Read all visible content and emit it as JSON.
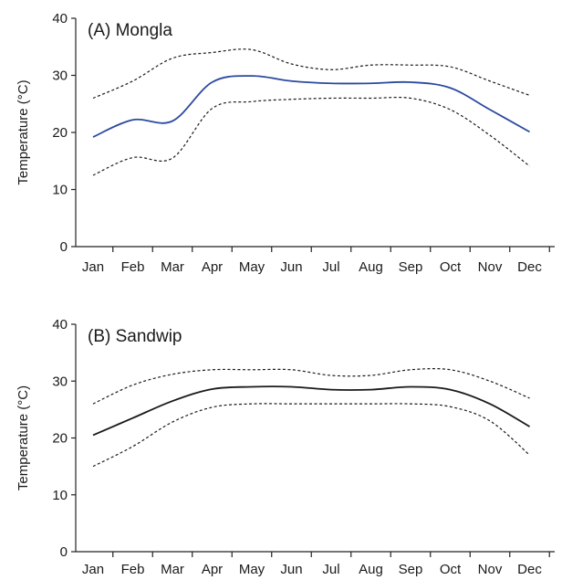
{
  "chart_data": [
    {
      "type": "line",
      "title": "(A) Mongla",
      "ylabel": "Temperature (°C)",
      "xlabel": "",
      "ylim": [
        0,
        40
      ],
      "yticks": [
        0,
        10,
        20,
        30,
        40
      ],
      "grid": false,
      "categories": [
        "Jan",
        "Feb",
        "Mar",
        "Apr",
        "May",
        "Jun",
        "Jul",
        "Aug",
        "Sep",
        "Oct",
        "Nov",
        "Dec"
      ],
      "series": [
        {
          "style": "dashed",
          "color": "#1a1a1a",
          "values": [
            26,
            29,
            33,
            34,
            34.5,
            32,
            31,
            31.8,
            31.8,
            31.5,
            29,
            26.5
          ]
        },
        {
          "style": "solid",
          "color": "#2b4a9e",
          "values": [
            19.2,
            22.2,
            22,
            28.8,
            29.9,
            29,
            28.6,
            28.6,
            28.8,
            27.8,
            24,
            20.1
          ]
        },
        {
          "style": "dashed",
          "color": "#1a1a1a",
          "values": [
            12.5,
            15.6,
            15.5,
            24.2,
            25.4,
            25.8,
            26,
            26,
            26,
            24,
            19.5,
            14.1
          ]
        }
      ]
    },
    {
      "type": "line",
      "title": "(B) Sandwip",
      "ylabel": "Temperature (°C)",
      "xlabel": "",
      "ylim": [
        0,
        40
      ],
      "yticks": [
        0,
        10,
        20,
        30,
        40
      ],
      "grid": false,
      "categories": [
        "Jan",
        "Feb",
        "Mar",
        "Apr",
        "May",
        "Jun",
        "Jul",
        "Aug",
        "Sep",
        "Oct",
        "Nov",
        "Dec"
      ],
      "series": [
        {
          "style": "dashed",
          "color": "#1a1a1a",
          "values": [
            26,
            29.3,
            31.2,
            32,
            32,
            32,
            31,
            31,
            32,
            32,
            30,
            27
          ]
        },
        {
          "style": "solid",
          "color": "#1a1a1a",
          "values": [
            20.5,
            23.5,
            26.5,
            28.6,
            29,
            29,
            28.5,
            28.5,
            29,
            28.5,
            26,
            22
          ]
        },
        {
          "style": "dashed",
          "color": "#1a1a1a",
          "values": [
            15,
            18.5,
            22.8,
            25.4,
            26,
            26,
            26,
            26,
            26,
            25.5,
            23,
            17
          ]
        }
      ]
    }
  ]
}
